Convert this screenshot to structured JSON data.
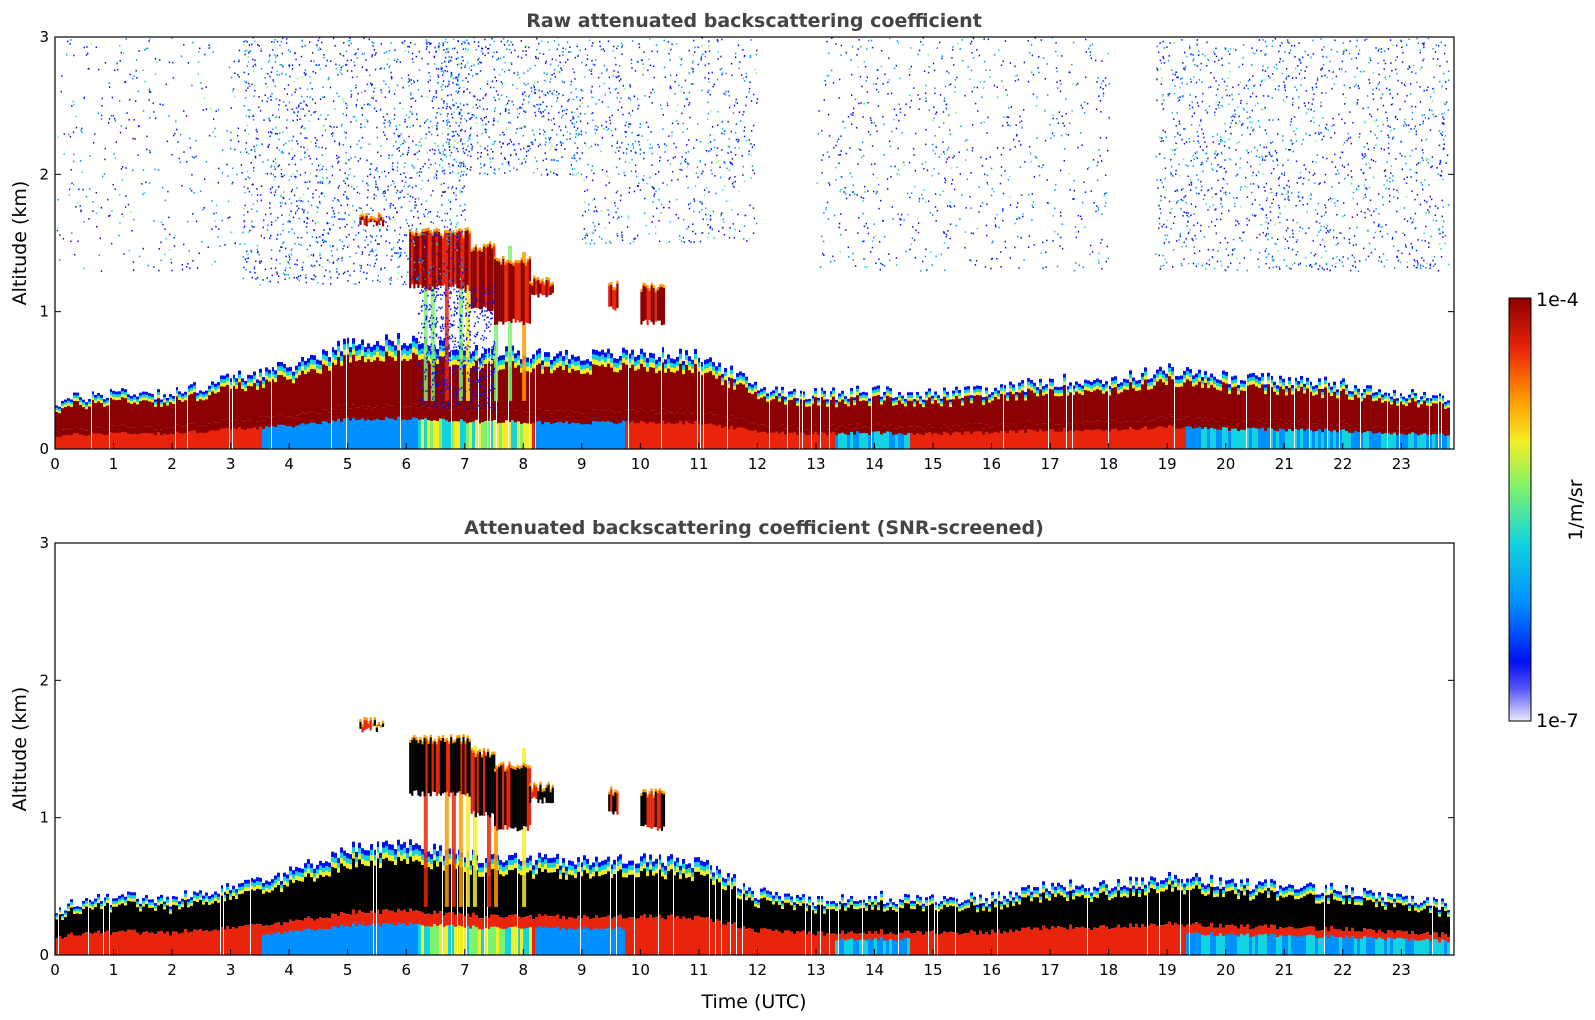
{
  "colors": {
    "deep_red": "#8b0000",
    "red": "#e8240c",
    "orange": "#ff9a00",
    "yellow": "#f4ee26",
    "green": "#7cf36e",
    "cyan": "#12d3df",
    "blue": "#0090ff",
    "dark_blue": "#0010f0",
    "faint": "#dcdcf4",
    "black": "#000000",
    "title_gray": "#444444"
  },
  "colorbar": {
    "max_label": "1e-4",
    "min_label": "1e-7",
    "unit": "1/m/sr",
    "scale": "log"
  },
  "chart_data": [
    {
      "type": "heatmap",
      "title": "Raw attenuated backscattering coefficient",
      "xlabel": "",
      "ylabel": "Altitude (km)",
      "xlim": [
        0,
        23.9
      ],
      "ylim": [
        0,
        3
      ],
      "xticks": [
        "0",
        "1",
        "2",
        "3",
        "4",
        "5",
        "6",
        "7",
        "8",
        "9",
        "10",
        "11",
        "12",
        "13",
        "14",
        "15",
        "16",
        "17",
        "18",
        "19",
        "20",
        "21",
        "22",
        "23"
      ],
      "yticks": [
        "0",
        "1",
        "2",
        "3"
      ],
      "boundary_layer_top_km": [
        {
          "t": 0,
          "z": 0.34
        },
        {
          "t": 1,
          "z": 0.42
        },
        {
          "t": 2,
          "z": 0.4
        },
        {
          "t": 3,
          "z": 0.52
        },
        {
          "t": 4,
          "z": 0.6
        },
        {
          "t": 5,
          "z": 0.78
        },
        {
          "t": 6,
          "z": 0.8
        },
        {
          "t": 7,
          "z": 0.72
        },
        {
          "t": 8,
          "z": 0.7
        },
        {
          "t": 9,
          "z": 0.68
        },
        {
          "t": 10,
          "z": 0.7
        },
        {
          "t": 11,
          "z": 0.68
        },
        {
          "t": 12,
          "z": 0.45
        },
        {
          "t": 13,
          "z": 0.4
        },
        {
          "t": 14,
          "z": 0.42
        },
        {
          "t": 15,
          "z": 0.4
        },
        {
          "t": 16,
          "z": 0.42
        },
        {
          "t": 17,
          "z": 0.5
        },
        {
          "t": 18,
          "z": 0.5
        },
        {
          "t": 19,
          "z": 0.58
        },
        {
          "t": 20,
          "z": 0.52
        },
        {
          "t": 21,
          "z": 0.5
        },
        {
          "t": 22,
          "z": 0.48
        },
        {
          "t": 23,
          "z": 0.4
        },
        {
          "t": 23.8,
          "z": 0.36
        }
      ],
      "cloud_layers": [
        {
          "t0": 6.05,
          "t1": 7.1,
          "z0": 1.15,
          "z1": 1.6
        },
        {
          "t0": 7.1,
          "t1": 7.5,
          "z0": 1.0,
          "z1": 1.5
        },
        {
          "t0": 7.5,
          "t1": 8.1,
          "z0": 0.9,
          "z1": 1.4
        },
        {
          "t0": 8.1,
          "t1": 8.5,
          "z0": 1.1,
          "z1": 1.25
        },
        {
          "t0": 9.45,
          "t1": 9.6,
          "z0": 1.0,
          "z1": 1.22
        },
        {
          "t0": 10.0,
          "t1": 10.4,
          "z0": 0.9,
          "z1": 1.2
        },
        {
          "t0": 5.2,
          "t1": 5.6,
          "z0": 1.62,
          "z1": 1.72
        }
      ],
      "noise_regions": [
        {
          "t0": 0,
          "t1": 3.2,
          "z0": 1.3,
          "z1": 3.0,
          "density": 0.25
        },
        {
          "t0": 3.2,
          "t1": 7.0,
          "z0": 1.2,
          "z1": 3.0,
          "density": 0.9
        },
        {
          "t0": 6.5,
          "t1": 9.0,
          "z0": 2.0,
          "z1": 3.0,
          "density": 1.0
        },
        {
          "t0": 9.0,
          "t1": 12.0,
          "z0": 1.5,
          "z1": 3.0,
          "density": 0.6
        },
        {
          "t0": 13.0,
          "t1": 18.0,
          "z0": 1.3,
          "z1": 3.0,
          "density": 0.35
        },
        {
          "t0": 18.8,
          "t1": 23.8,
          "z0": 1.3,
          "z1": 3.0,
          "density": 0.7
        }
      ]
    },
    {
      "type": "heatmap",
      "title": "Attenuated backscattering coefficient (SNR-screened)",
      "xlabel": "Time (UTC)",
      "ylabel": "Altitude (km)",
      "xlim": [
        0,
        23.9
      ],
      "ylim": [
        0,
        3
      ],
      "xticks": [
        "0",
        "1",
        "2",
        "3",
        "4",
        "5",
        "6",
        "7",
        "8",
        "9",
        "10",
        "11",
        "12",
        "13",
        "14",
        "15",
        "16",
        "17",
        "18",
        "19",
        "20",
        "21",
        "22",
        "23"
      ],
      "yticks": [
        "0",
        "1",
        "2",
        "3"
      ],
      "saturation_black": true
    }
  ]
}
